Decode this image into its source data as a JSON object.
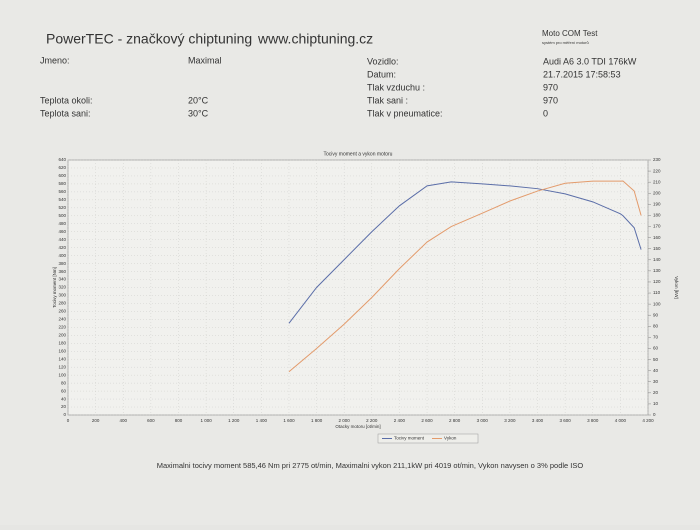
{
  "header": {
    "company": "PowerTEC - značkový chiptuning",
    "web": "www.chiptuning.cz",
    "software": "Moto COM Test",
    "software_sub": "systém pro měření motorů"
  },
  "fields_left": [
    [
      "Jmeno:",
      "Maximal"
    ],
    [
      "Teplota okoli:",
      "20°C"
    ],
    [
      "Teplota sani:",
      "30°C"
    ]
  ],
  "fields_right": [
    [
      "Vozidlo:",
      "Audi A6 3.0 TDI 176kW"
    ],
    [
      "Datum:",
      "21.7.2015 17:58:53"
    ],
    [
      "Tlak vzduchu :",
      "970"
    ],
    [
      "Tlak sani :",
      "970"
    ],
    [
      "Tlak v pneumatice:",
      "0"
    ]
  ],
  "footer": "Maximalni tocivy moment 585,46 Nm pri 2775 ot/min,  Maximalni vykon 211,1kW pri 4019 ot/min,  Vykon navysen o 3% podle ISO",
  "chart_data": {
    "type": "line",
    "title": "Tocivy moment a vykon motoru",
    "x_label": "Otacky motoru [ot/min]",
    "y_label": "Tocivy moment [Nm]",
    "y2_label": "Vykon [kW]",
    "x": [
      1600,
      1800,
      2000,
      2200,
      2400,
      2600,
      2775,
      3000,
      3200,
      3400,
      3600,
      3800,
      4000,
      4019,
      4100,
      4150
    ],
    "series": [
      {
        "name": "Tocivy moment",
        "color": "#5b6ea8",
        "values": [
          230,
          320,
          390,
          460,
          525,
          575,
          585,
          580,
          575,
          568,
          555,
          535,
          505,
          500,
          470,
          415
        ]
      },
      {
        "name": "Vykon",
        "color": "#e39b6c",
        "axis": "y2",
        "values": [
          39,
          60,
          82,
          106,
          132,
          156,
          170,
          182,
          193,
          202,
          209,
          211,
          211,
          211.1,
          202,
          180
        ]
      }
    ],
    "xlim": [
      0,
      4200
    ],
    "xticks": [
      0,
      200,
      400,
      600,
      800,
      {
        "value": 1000,
        "label": "1 000"
      },
      {
        "value": 1200,
        "label": "1 200"
      },
      {
        "value": 1400,
        "label": "1 400"
      },
      {
        "value": 1600,
        "label": "1 600"
      },
      {
        "value": 1800,
        "label": "1 800"
      },
      {
        "value": 2000,
        "label": "2 000"
      },
      {
        "value": 2200,
        "label": "2 200"
      },
      {
        "value": 2400,
        "label": "2 400"
      },
      {
        "value": 2600,
        "label": "2 600"
      },
      {
        "value": 2800,
        "label": "2 800"
      },
      {
        "value": 3000,
        "label": "3 000"
      },
      {
        "value": 3200,
        "label": "3 200"
      },
      {
        "value": 3400,
        "label": "3 400"
      },
      {
        "value": 3600,
        "label": "3 600"
      },
      {
        "value": 3800,
        "label": "3 800"
      },
      {
        "value": 4000,
        "label": "4 000"
      },
      {
        "value": 4200,
        "label": "4 200"
      }
    ],
    "ylim": [
      0,
      640
    ],
    "yticks": [
      0,
      20,
      40,
      60,
      80,
      100,
      120,
      140,
      160,
      180,
      200,
      220,
      240,
      260,
      280,
      300,
      320,
      340,
      360,
      380,
      400,
      420,
      440,
      460,
      480,
      500,
      520,
      540,
      560,
      580,
      600,
      620,
      640
    ],
    "y2lim": [
      0,
      230
    ],
    "y2ticks": [
      0,
      10,
      20,
      30,
      40,
      50,
      60,
      70,
      80,
      90,
      100,
      110,
      120,
      130,
      140,
      150,
      160,
      170,
      180,
      190,
      200,
      210,
      220,
      230
    ],
    "grid": true
  }
}
